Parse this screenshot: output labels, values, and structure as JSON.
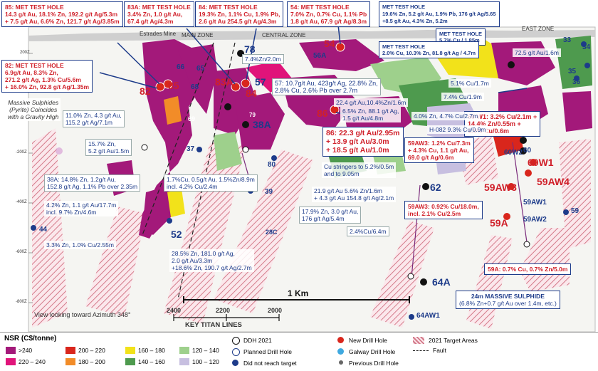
{
  "zones": {
    "main": "MAIN ZONE",
    "central": "CENTRAL ZONE",
    "east": "EAST ZONE",
    "estrades": "Estrades Mine"
  },
  "callouts": {
    "c85": {
      "h": "85: MET TEST HOLE",
      "b": "14.3 g/t Au, 18.1% Zn, 192.2 g/t Ag/5.3m\n+ 7.5 g/t Au, 6.6% Zn, 121.7 g/t Ag/3.85m"
    },
    "c83a": {
      "h": "83A: MET TEST HOLE",
      "b": "3.4% Zn, 1.0 g/t Au,\n67.4 g/t Ag/4.3m"
    },
    "c84": {
      "h": "84: MET TEST HOLE",
      "b": "19.3% Zn, 1.1% Cu, 1.9% Pb,\n2.6 g/t Au 254.5 g/t Ag/4.3m"
    },
    "c54": {
      "h": "54: MET TEST HOLE",
      "b": "7.0% Zn, 0.7% Cu, 1.1% Pb\n1.8 g/t Au, 67.9 g/t Ag/8.3m"
    },
    "c82": {
      "h": "82: MET TEST HOLE",
      "b": "6.9g/t Au, 8.3% Zn,\n271.2 g/t Ag, 1.3% Cu/5.6m\n+ 16.0% Zn, 92.8 g/t Ag/1.35m"
    },
    "cmet1": {
      "h": "MET TEST HOLE",
      "b": "19.6% Zn, 5.2 g/t Au, 1.9% Pb, 176 g/t Ag/5.65\n+8.5 g/t Au, 4.3% Zn, 5.2m"
    },
    "cmet2": {
      "h": "MET TEST HOLE",
      "b": "5.7% Cu / 1.85m"
    },
    "cmet3": {
      "h": "MET TEST HOLE",
      "b": "2.0% Cu, 10.3% Zn, 81.8 g/t Ag / 4.7m"
    },
    "c86": {
      "h": "86: 22.3 g/t Au/2.95m",
      "b": "+ 13.9 g/t Au/3.0m\n+ 18.5 g/t Au/1.0m"
    },
    "c60w1": {
      "h": "60 W1: 3.2% Cu/2.1m +",
      "b": "14.4% Zn/0.55m +\n1.9% Cu/0.6m"
    },
    "c59aw3": {
      "h": "59AW3: 1.2% Cu/7.3m",
      "b": "+ 4.3% Cu, 1.1 g/t Au,\n69.0 g/t Ag/0.6m"
    },
    "c59aw3b": {
      "h": "59AW3: 0.92% Cu/18.0m,",
      "b": "incl. 2.1% Cu/2.5m"
    },
    "c59a": {
      "h": "59A: 0.7% Cu, 0.7% Zn/5.0m",
      "b": ""
    },
    "cms": {
      "h": "24m MASSIVE SULPHIDE",
      "b": "(6.8% Zn+0.7 g/t Au over 1.4m, etc.)"
    }
  },
  "labels": {
    "l1": "7.4%Zn/2.0m",
    "l2": "57: 10.7g/t Au, 423g/t Ag, 22.8% Zn,\n2.8% Cu, 2.6% Pb over 2.7m",
    "l3": "22.4 g/t Au,10.4%Zn/1.6m",
    "l4": "6.5% Zn, 88.1 g/t Ag,\n1.5 g/t Au/4.8m",
    "l5": "11.0% Zn, 4.3 g/t Au,\n115.2 g/t Ag/7.1m",
    "l6": "15.7% Zn,\n5.2 g/t Au/1.5m",
    "l7": "38A: 14.8% Zn, 1.2g/t Au,\n152.8 g/t Ag, 1.1% Pb over 2.35m",
    "l8": "1.7%Cu, 0.5g/t Au, 1.5%Zn/8.9m\nincl. 4.2% Cu/2.4m",
    "l9": "4.2% Zn, 1.1 g/t Au/17.7m\nincl. 9.7% Zn/4.6m",
    "l10": "3.3% Zn, 1.0% Cu/2.55m",
    "l11": "28.5% Zn, 181.0 g/t Ag,\n2.0 g/t Au/3.3m\n+18.6% Zn, 190.7 g/t Ag/2.7m",
    "l12": "17.9% Zn, 3.0 g/t Au,\n176 g/t Ag/5.4m",
    "l13": "21.9 g/t Au 5.6% Zn/1.6m\n+ 4.3 g/t Au 154.8 g/t Ag/2.1m",
    "l14": "Cu stringers to 5.2%/0.5m\nand to 9.05m",
    "l15": "2.4%Cu/6.4m",
    "l16": "72.5 g/t Au/1.6m",
    "l17": "5.1% Cu/1.7m",
    "l18": "7.4% Cu/1.9m",
    "l19": "4.0% Zn, 4.7% Cu/2.7m",
    "l20": "H-082 9.3% Cu/0.9m",
    "massive": "Massive Sulphides\n(Pyrite) Coincides\nwith a Gravity High"
  },
  "holes": {
    "h85": "85",
    "h82": "82",
    "h83a": "83A",
    "h84": "84",
    "h78": "78",
    "h66": "66",
    "h65": "65",
    "h68": "68",
    "h57": "57",
    "h54": "54",
    "h56a": "56A",
    "h86": "86",
    "h38a": "38A",
    "h37": "37",
    "h80": "80",
    "h39": "39",
    "h52": "52",
    "h28c": "28C",
    "h44": "44",
    "h62": "62",
    "h64a": "64A",
    "h64aw1": "64AW1",
    "h33": "33",
    "h34": "34",
    "h35": "35",
    "h36": "36",
    "h60w2": "60W2",
    "h60w1": "60W1",
    "h60": "60",
    "h59aw3": "59AW3",
    "h59aw4": "59AW4",
    "h59aw1": "59AW1",
    "h59aw2": "59AW2",
    "h59a": "59A",
    "h59": "59",
    "h69": "69",
    "h79": "79"
  },
  "scale": {
    "label": "1 Km"
  },
  "titan": {
    "title": "KEY TITAN LINES",
    "t1": "2400",
    "t2": "2200",
    "t3": "2000"
  },
  "view": "View looking toward Azimuth 348°",
  "elev": {
    "e1": "200Z",
    "e2": "-200Z",
    "e3": "-400Z",
    "e4": "-600Z",
    "e5": "-800Z"
  },
  "legend": {
    "title": "NSR (C$/tonne)",
    "s1": ">240",
    "s2": "200 – 220",
    "s3": "160 – 180",
    "s4": "120 – 140",
    "s5": "220 – 240",
    "s6": "180 – 200",
    "s7": "140 – 160",
    "s8": "100 – 120",
    "ddh": "DDH 2021",
    "planned": "Planned Drill Hole",
    "notreach": "Did not reach target",
    "newhole": "New Drill Hole",
    "galway": "Galway Drill Hole",
    "prev": "Previous Drill Hole",
    "target": "2021 Target Areas",
    "fault": "Fault"
  },
  "colors": {
    "magenta": "#a3197a",
    "pink": "#e0147a",
    "red": "#d9261c",
    "orange": "#f28c28",
    "yellow": "#f2e21a",
    "lgreen": "#9ed08c",
    "green": "#4e9a4e",
    "lav": "#c7bfe0",
    "navy": "#1d3b8a",
    "callred": "#d0202a"
  }
}
